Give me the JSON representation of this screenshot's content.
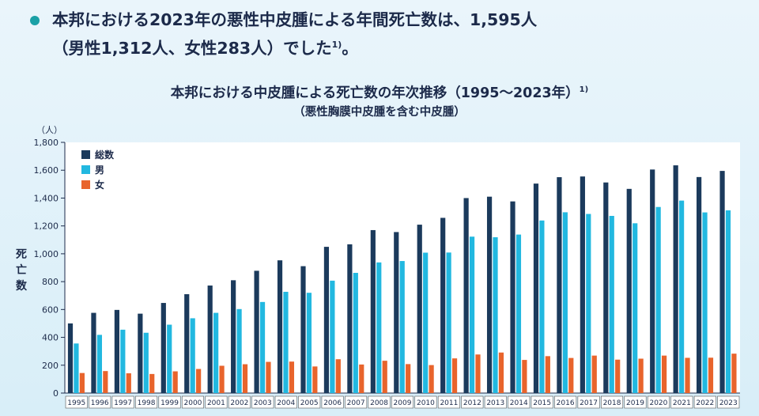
{
  "headline": {
    "line1": "本邦における2023年の悪性中皮腫による年間死亡数は、1,595人",
    "line2": "（男性1,312人、女性283人）でした",
    "line2_sup": "1)",
    "line2_end": "。"
  },
  "chart_data": {
    "type": "bar",
    "title": "本邦における中皮腫による死亡数の年次推移（1995～2023年）",
    "title_sup": "1)",
    "subtitle": "（悪性胸膜中皮腫を含む中皮腫）",
    "unit_label": "（人）",
    "ylabel": "死亡数",
    "ylim": [
      0,
      1800
    ],
    "yticks": [
      "0",
      "200",
      "400",
      "600",
      "800",
      "1,000",
      "1,200",
      "1,400",
      "1,600",
      "1,800"
    ],
    "legend_position": "top-left",
    "categories": [
      "1995",
      "1996",
      "1997",
      "1998",
      "1999",
      "2000",
      "2001",
      "2002",
      "2003",
      "2004",
      "2005",
      "2006",
      "2007",
      "2008",
      "2009",
      "2010",
      "2011",
      "2012",
      "2013",
      "2014",
      "2015",
      "2016",
      "2017",
      "2018",
      "2019",
      "2020",
      "2021",
      "2022",
      "2023"
    ],
    "series": [
      {
        "name": "総数",
        "color": "#1b3a5c",
        "values": [
          500,
          576,
          597,
          570,
          647,
          710,
          772,
          810,
          878,
          953,
          911,
          1050,
          1068,
          1170,
          1156,
          1209,
          1258,
          1400,
          1410,
          1376,
          1504,
          1550,
          1555,
          1512,
          1466,
          1605,
          1635,
          1551,
          1595
        ]
      },
      {
        "name": "男",
        "color": "#22b8e0",
        "values": [
          356,
          418,
          455,
          433,
          491,
          537,
          576,
          603,
          654,
          727,
          720,
          807,
          863,
          938,
          948,
          1008,
          1009,
          1123,
          1119,
          1138,
          1239,
          1298,
          1286,
          1272,
          1219,
          1336,
          1382,
          1297,
          1312
        ]
      },
      {
        "name": "女",
        "color": "#e8642c",
        "values": [
          144,
          158,
          142,
          137,
          156,
          173,
          196,
          207,
          224,
          226,
          191,
          243,
          205,
          232,
          208,
          201,
          249,
          277,
          291,
          238,
          265,
          252,
          269,
          240,
          247,
          269,
          253,
          254,
          283
        ]
      }
    ]
  }
}
